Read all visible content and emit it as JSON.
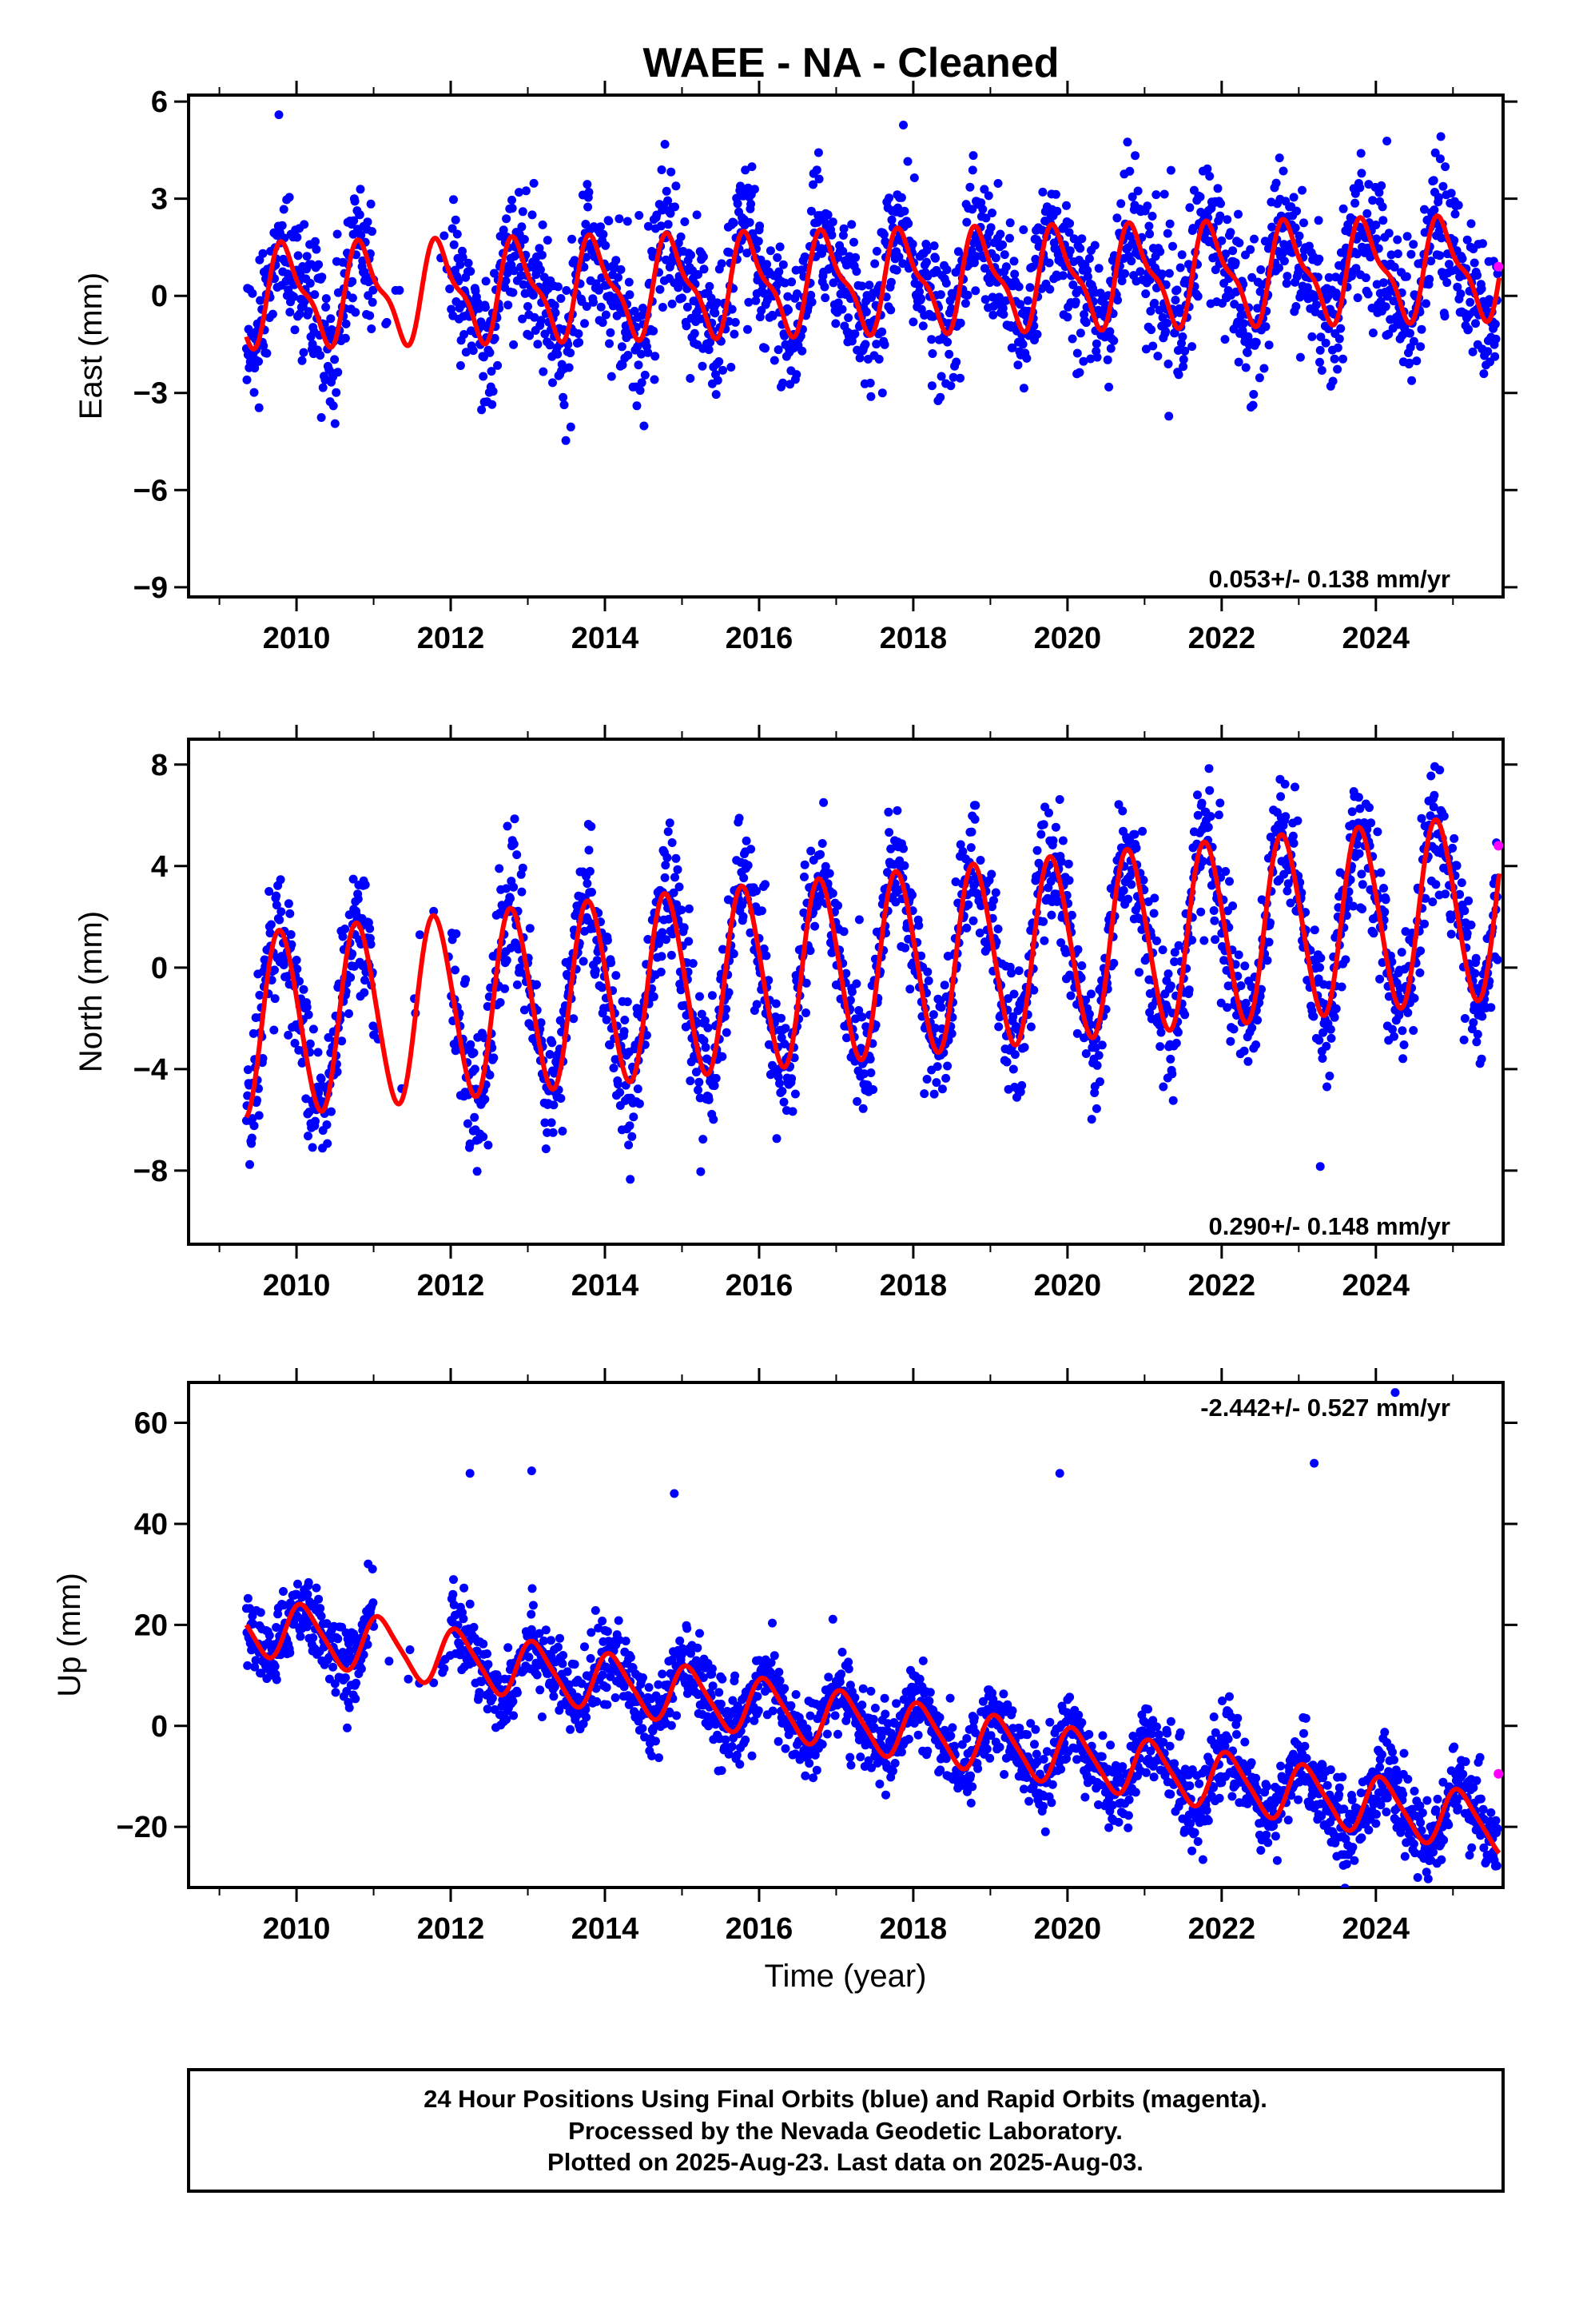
{
  "title": "WAEE  - NA - Cleaned",
  "caption": {
    "lines": [
      "24 Hour Positions Using Final Orbits (blue) and Rapid Orbits (magenta).",
      "Processed by the Nevada Geodetic Laboratory.",
      "Plotted on 2025-Aug-23. Last data on 2025-Aug-03."
    ]
  },
  "colors": {
    "final": "#0000ff",
    "rapid": "#ff00ff",
    "model": "#ff0000",
    "axis": "#000000"
  },
  "chart_data": [
    {
      "type": "scatter",
      "name": "east",
      "ylabel": "East (mm)",
      "xlabel": "",
      "rate_label": "0.053+/- 0.138 mm/yr",
      "xlim": [
        2008.6,
        2025.65
      ],
      "ylim": [
        -9.3,
        6.2
      ],
      "xticks": [
        2010,
        2012,
        2014,
        2016,
        2018,
        2020,
        2022,
        2024
      ],
      "yticks": [
        -9,
        -6,
        -3,
        0,
        3,
        6
      ],
      "ytick_labels": [
        "−9",
        "−6",
        "−3",
        "0",
        "3",
        "6"
      ],
      "grid": false,
      "series": [
        {
          "kind": "final_points",
          "x_start": 2009.35,
          "x_end": 2025.58,
          "gaps": [
            [
              2011.0,
              2012.0
            ]
          ],
          "trend": 0.053,
          "annual_amp": 1.4,
          "annual_phase": 0.62,
          "semi_amp": 0.5,
          "noise_sd": 1.1
        },
        {
          "kind": "rapid_points",
          "x": [
            2025.59
          ],
          "y": [
            0.9
          ]
        },
        {
          "kind": "model_fit",
          "offset": 0.0,
          "trend": 0.053,
          "annual_amp": 1.4,
          "annual_phase": 0.62,
          "semi_amp": 0.5
        }
      ]
    },
    {
      "type": "scatter",
      "name": "north",
      "ylabel": "North (mm)",
      "xlabel": "",
      "rate_label": "0.290+/- 0.148 mm/yr",
      "xlim": [
        2008.6,
        2025.65
      ],
      "ylim": [
        -10.9,
        9.0
      ],
      "xticks": [
        2010,
        2012,
        2014,
        2016,
        2018,
        2020,
        2022,
        2024
      ],
      "yticks": [
        -8,
        -4,
        0,
        4,
        8
      ],
      "ytick_labels": [
        "−8",
        "−4",
        "0",
        "4",
        "8"
      ],
      "grid": false,
      "series": [
        {
          "kind": "final_points",
          "x_start": 2009.35,
          "x_end": 2025.58,
          "gaps": [
            [
              2011.0,
              2012.0
            ]
          ],
          "trend": 0.29,
          "annual_amp": 3.6,
          "annual_phase": 0.55,
          "semi_amp": 0.3,
          "noise_sd": 1.3
        },
        {
          "kind": "rapid_points",
          "x": [
            2025.59
          ],
          "y": [
            4.8
          ]
        },
        {
          "kind": "model_fit",
          "offset": -2.3,
          "trend": 0.29,
          "annual_amp": 3.6,
          "annual_phase": 0.55,
          "semi_amp": 0.3
        }
      ]
    },
    {
      "type": "scatter",
      "name": "up",
      "ylabel": "Up (mm)",
      "xlabel": "Time (year)",
      "rate_label": "-2.442+/- 0.527 mm/yr",
      "xlim": [
        2008.6,
        2025.65
      ],
      "ylim": [
        -32,
        68
      ],
      "xticks": [
        2010,
        2012,
        2014,
        2016,
        2018,
        2020,
        2022,
        2024
      ],
      "yticks": [
        -20,
        0,
        20,
        40,
        60
      ],
      "ytick_labels": [
        "−20",
        "0",
        "20",
        "40",
        "60"
      ],
      "grid": false,
      "series": [
        {
          "kind": "final_points",
          "x_start": 2009.35,
          "x_end": 2025.58,
          "gaps": [
            [
              2011.0,
              2012.0
            ]
          ],
          "trend": -2.442,
          "annual_amp": 5.5,
          "annual_phase": 0.85,
          "semi_amp": 1.0,
          "noise_sd": 4.0
        },
        {
          "kind": "rapid_points",
          "x": [
            2025.59
          ],
          "y": [
            -9.5
          ]
        },
        {
          "kind": "model_fit",
          "offset": 20.0,
          "trend": -2.442,
          "annual_amp": 5.5,
          "annual_phase": 0.85,
          "semi_amp": 1.0
        },
        {
          "kind": "outliers",
          "x": [
            2012.25,
            2013.05,
            2014.9,
            2019.9,
            2023.2,
            2024.25
          ],
          "y": [
            50,
            50.5,
            46,
            50,
            52,
            66
          ]
        }
      ]
    }
  ]
}
